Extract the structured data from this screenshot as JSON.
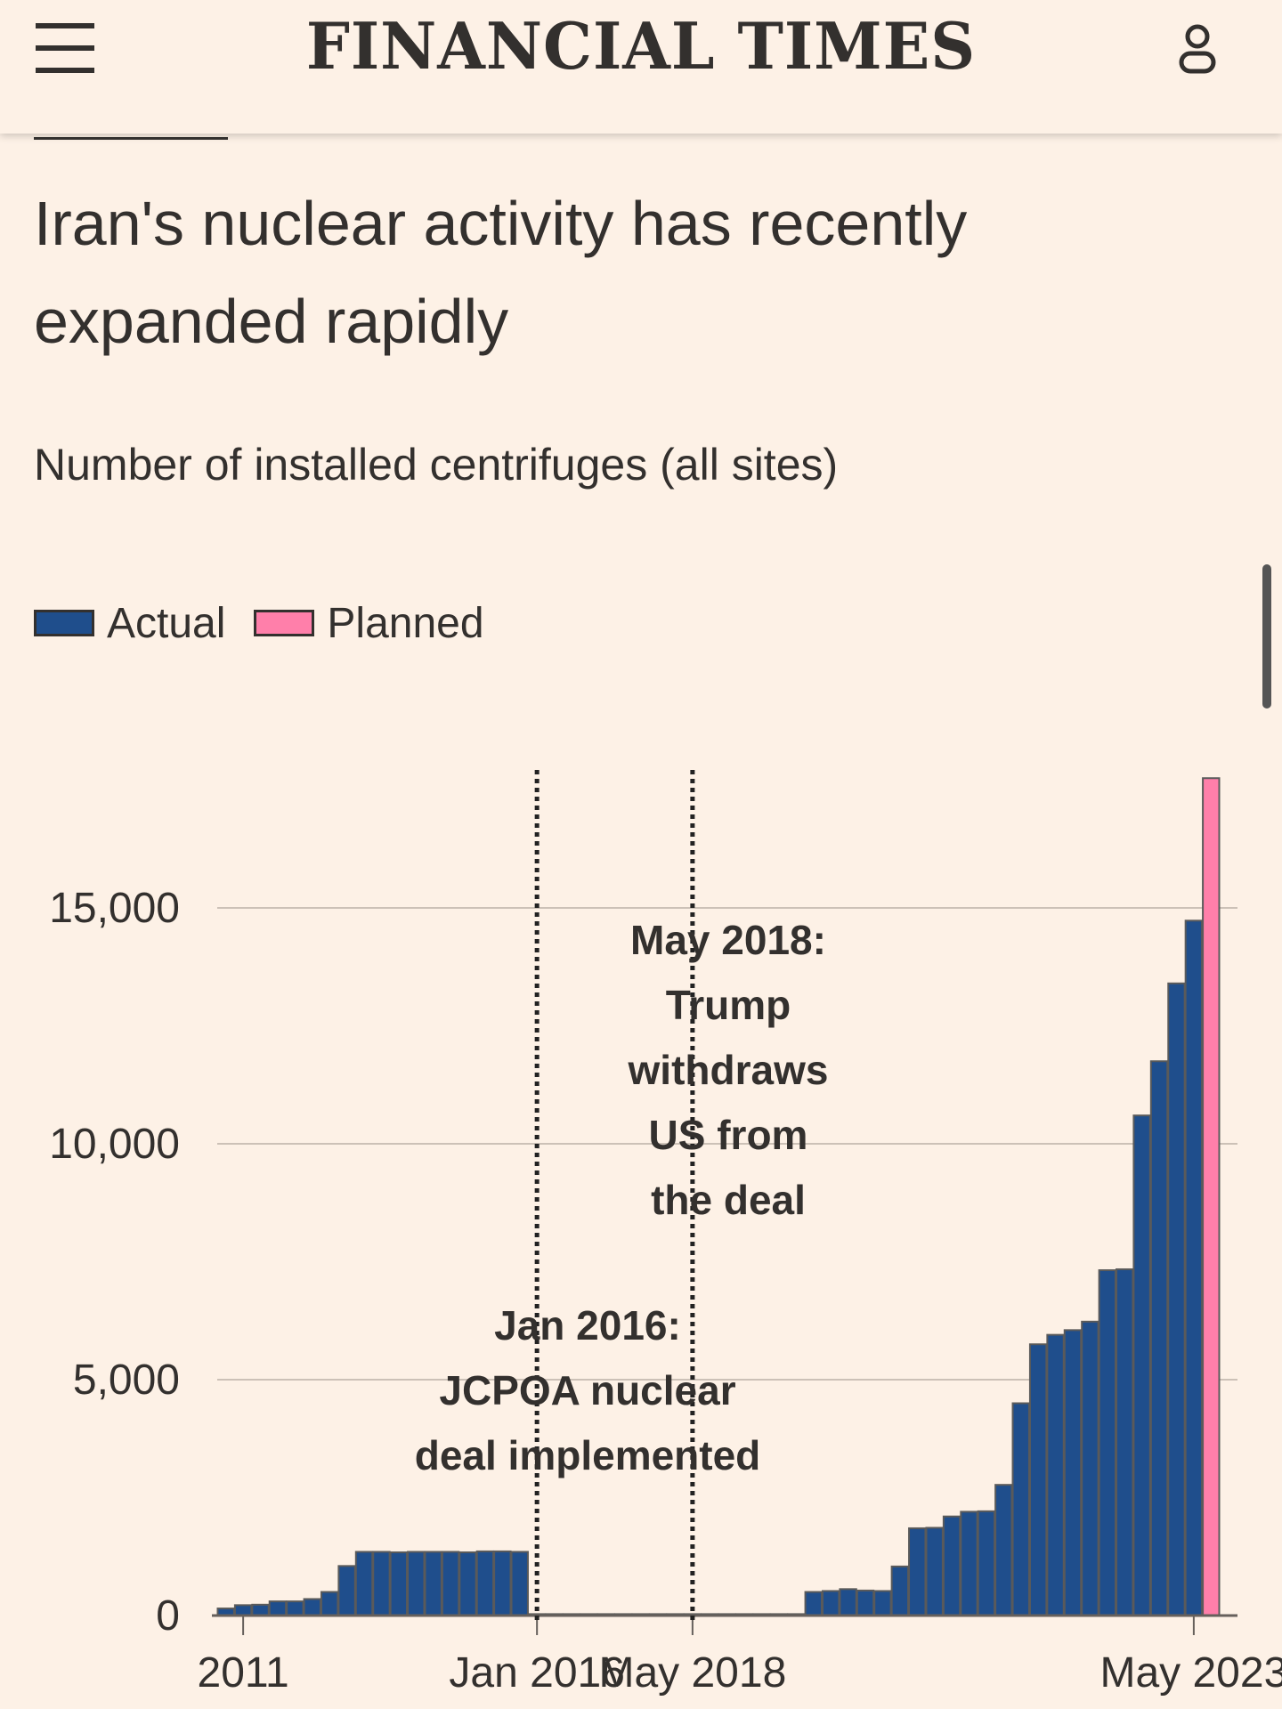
{
  "header": {
    "brand": "FINANCIAL TIMES",
    "menu_icon": "hamburger-menu-icon",
    "account_icon": "user-account-icon"
  },
  "article": {
    "headline": "Iran's nuclear activity has recently expanded rapidly",
    "subtitle": "Number of installed centrifuges (all sites)"
  },
  "colors": {
    "background": "#fdf1e6",
    "actual": "#1f4e8c",
    "planned": "#ff7faa",
    "text": "#33302e",
    "grid": "#ccc1b7"
  },
  "chart_data": {
    "type": "bar",
    "ylim": [
      0,
      18000
    ],
    "yticks": [
      0,
      5000,
      10000,
      15000
    ],
    "ytick_labels": [
      "0",
      "5,000",
      "10,000",
      "15,000"
    ],
    "xtick_labels": [
      "2011",
      "Jan 2016",
      "May 2018",
      "May 2023"
    ],
    "legend": [
      "Actual",
      "Planned"
    ],
    "legend_position": "top-left",
    "grid": true,
    "series": [
      {
        "name": "Actual",
        "values": [
          150,
          220,
          230,
          300,
          300,
          350,
          500,
          1050,
          1350,
          1350,
          1340,
          1350,
          1350,
          1350,
          1340,
          1360,
          1360,
          1350,
          30,
          30,
          30,
          30,
          30,
          30,
          30,
          30,
          30,
          30,
          30,
          30,
          30,
          30,
          30,
          30,
          500,
          520,
          560,
          530,
          520,
          1040,
          1850,
          1860,
          2100,
          2200,
          2210,
          2770,
          4500,
          5750,
          5950,
          6050,
          6230,
          7320,
          7340,
          10600,
          11750,
          13400,
          14730
        ]
      },
      {
        "name": "Planned",
        "values": [
          17750
        ]
      }
    ],
    "annotations": [
      {
        "text_lines": [
          "Jan 2016:",
          "JCPOA nuclear",
          "deal implemented"
        ]
      },
      {
        "text_lines": [
          "May 2018:",
          "Trump",
          "withdraws",
          "US from",
          "the deal"
        ]
      }
    ]
  }
}
